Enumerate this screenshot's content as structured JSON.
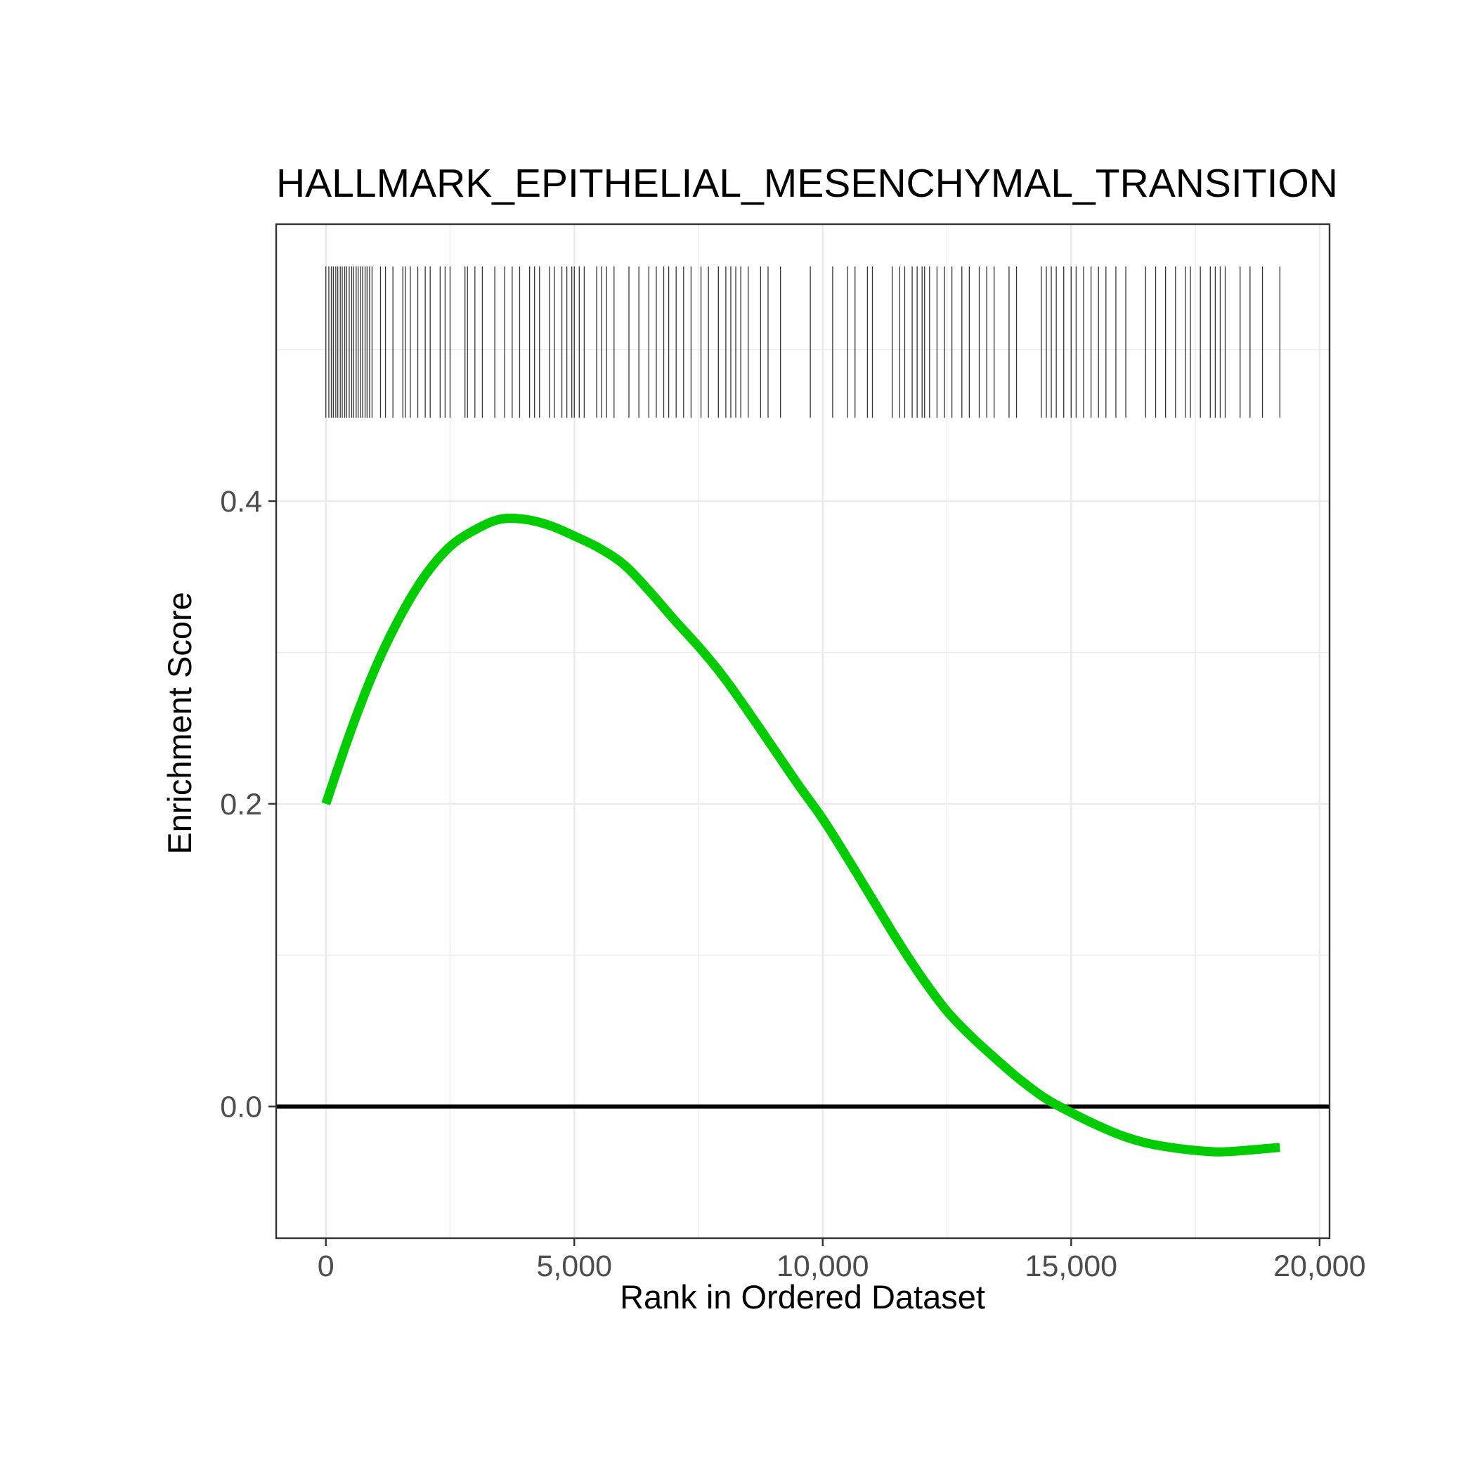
{
  "chart_data": {
    "type": "line",
    "title": "HALLMARK_EPITHELIAL_MESENCHYMAL_TRANSITION",
    "xlabel": "Rank in Ordered Dataset",
    "ylabel": "Enrichment Score",
    "xlim": [
      -1000,
      20200
    ],
    "ylim": [
      -0.087,
      0.583
    ],
    "x_ticks": [
      0,
      5000,
      10000,
      15000,
      20000
    ],
    "x_tick_labels": [
      "0",
      "5,000",
      "10,000",
      "15,000",
      "20,000"
    ],
    "y_ticks": [
      0.0,
      0.2,
      0.4
    ],
    "y_tick_labels": [
      "0.0",
      "0.2",
      "0.4"
    ],
    "grid": true,
    "colors": {
      "curve": "#00cc00",
      "baseline": "#000000",
      "hits": "#333333",
      "grid": "#ebebeb",
      "panel_border": "#333333"
    },
    "reference_line": {
      "y": 0
    },
    "hit_band": {
      "y_range": [
        0.455,
        0.555
      ]
    },
    "series": [
      {
        "x": [
          0,
          500,
          1000,
          1500,
          2000,
          2500,
          3000,
          3500,
          4000,
          4500,
          5000,
          5500,
          6000,
          6500,
          7000,
          7500,
          8000,
          8500,
          9000,
          9500,
          10000,
          10500,
          11000,
          11500,
          12000,
          12500,
          13000,
          13500,
          14000,
          14500,
          15000,
          15500,
          16000,
          16500,
          17000,
          17500,
          18000,
          18500,
          19200
        ],
        "y": [
          0.2,
          0.248,
          0.29,
          0.324,
          0.351,
          0.37,
          0.381,
          0.388,
          0.388,
          0.384,
          0.377,
          0.369,
          0.358,
          0.341,
          0.322,
          0.304,
          0.284,
          0.261,
          0.237,
          0.213,
          0.19,
          0.164,
          0.137,
          0.11,
          0.085,
          0.063,
          0.046,
          0.031,
          0.017,
          0.005,
          -0.004,
          -0.012,
          -0.019,
          -0.024,
          -0.027,
          -0.029,
          -0.03,
          -0.029,
          -0.027
        ]
      }
    ],
    "hits": [
      0,
      60,
      110,
      150,
      200,
      240,
      290,
      330,
      380,
      420,
      470,
      520,
      560,
      610,
      650,
      700,
      740,
      790,
      830,
      880,
      930,
      1100,
      1200,
      1350,
      1550,
      1600,
      1700,
      1850,
      2000,
      2100,
      2300,
      2400,
      2500,
      2800,
      2850,
      3000,
      3150,
      3400,
      3600,
      3750,
      3900,
      4100,
      4200,
      4300,
      4500,
      4600,
      4750,
      4850,
      4950,
      5000,
      5100,
      5200,
      5450,
      5550,
      5650,
      5800,
      6100,
      6300,
      6500,
      6650,
      6800,
      6900,
      7050,
      7200,
      7350,
      7550,
      7700,
      7900,
      8050,
      8150,
      8250,
      8350,
      8500,
      8750,
      8900,
      9150,
      9750,
      10200,
      10500,
      10650,
      10900,
      11000,
      11400,
      11550,
      11650,
      11800,
      11900,
      12000,
      12050,
      12150,
      12300,
      12450,
      12600,
      12800,
      12950,
      13150,
      13300,
      13450,
      13750,
      13900,
      14400,
      14500,
      14600,
      14700,
      14850,
      15000,
      15100,
      15250,
      15400,
      15550,
      15700,
      15900,
      16100,
      16500,
      16700,
      16900,
      17100,
      17300,
      17400,
      17600,
      17800,
      17900,
      18000,
      18100,
      18400,
      18600,
      18850,
      19200
    ]
  }
}
